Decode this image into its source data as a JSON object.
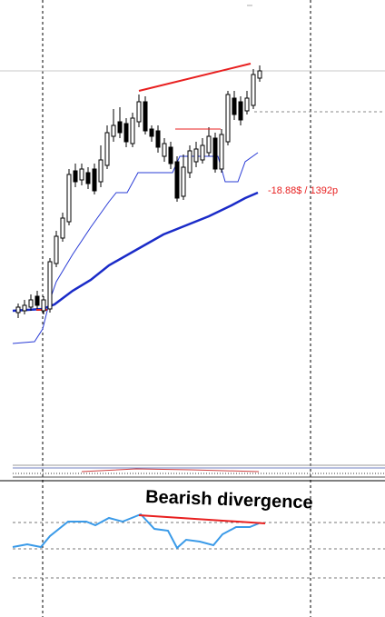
{
  "annotations": {
    "trade_result": "-18.88$ / 1392p",
    "pattern_label": "Bearish divergence"
  }
}
